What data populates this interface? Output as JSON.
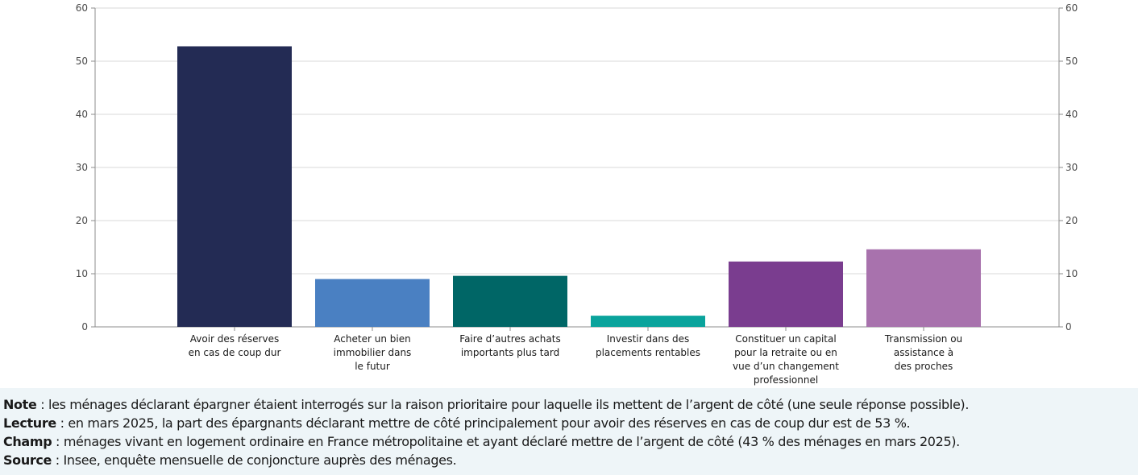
{
  "chart_data": {
    "type": "bar",
    "categories": [
      [
        "Avoir des réserves",
        "en cas de coup dur"
      ],
      [
        "Acheter un bien",
        "immobilier dans",
        "le futur"
      ],
      [
        "Faire d’autres achats",
        "importants plus tard"
      ],
      [
        "Investir dans des",
        "placements rentables"
      ],
      [
        "Constituer un capital",
        "pour la retraite ou en",
        "vue d’un changement",
        "professionnel"
      ],
      [
        "Transmission ou",
        "assistance à",
        "des proches"
      ]
    ],
    "values": [
      52.8,
      9.0,
      9.6,
      2.1,
      12.3,
      14.6
    ],
    "colors": [
      "#232b54",
      "#4a80c2",
      "#006666",
      "#0aa39c",
      "#7a3d8f",
      "#a872ad"
    ],
    "ylim": [
      0,
      60
    ],
    "yticks": [
      0,
      10,
      20,
      30,
      40,
      50,
      60
    ],
    "grid": true,
    "right_axis": true
  },
  "notes": [
    {
      "label": "Note",
      "text": " : les ménages déclarant épargner étaient interrogés sur la raison prioritaire pour laquelle ils mettent de l’argent de côté (une seule réponse possible)."
    },
    {
      "label": "Lecture",
      "text": " : en mars 2025, la part des épargnants déclarant mettre de côté principalement pour avoir des réserves en cas de coup dur est de 53 %."
    },
    {
      "label": "Champ",
      "text": " : ménages vivant en logement ordinaire en France métropolitaine et ayant déclaré mettre de l’argent de côté (43 % des ménages en mars 2025)."
    },
    {
      "label": "Source",
      "text": " : Insee, enquête mensuelle de conjoncture auprès des ménages."
    }
  ]
}
